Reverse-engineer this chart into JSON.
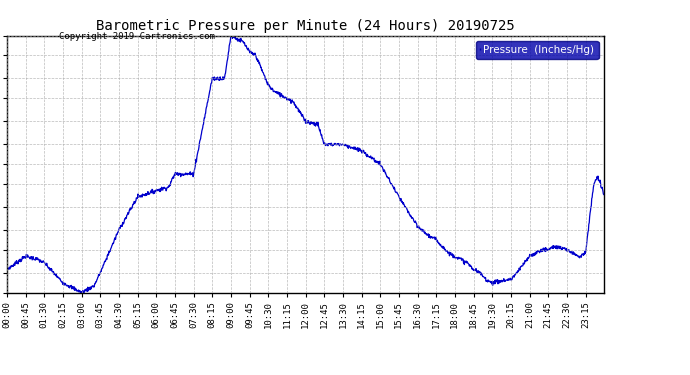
{
  "title": "Barometric Pressure per Minute (24 Hours) 20190725",
  "copyright_text": "Copyright 2019 Cartronics.com",
  "legend_label": "Pressure  (Inches/Hg)",
  "line_color": "#0000cc",
  "background_color": "#ffffff",
  "grid_color": "#aaaaaa",
  "ylim": [
    29.964,
    30.042
  ],
  "yticks": [
    29.964,
    29.97,
    29.977,
    29.983,
    29.99,
    29.997,
    30.003,
    30.009,
    30.016,
    30.023,
    30.029,
    30.036,
    30.042
  ],
  "xtick_labels": [
    "00:00",
    "00:45",
    "01:30",
    "02:15",
    "03:00",
    "03:45",
    "04:30",
    "05:15",
    "06:00",
    "06:45",
    "07:30",
    "08:15",
    "09:00",
    "09:45",
    "10:30",
    "11:15",
    "12:00",
    "12:45",
    "13:30",
    "14:15",
    "15:00",
    "15:45",
    "16:30",
    "17:15",
    "18:00",
    "18:45",
    "19:30",
    "20:15",
    "21:00",
    "21:45",
    "22:30",
    "23:15"
  ],
  "keypoints_time": [
    0,
    45,
    75,
    90,
    135,
    180,
    210,
    225,
    270,
    315,
    360,
    390,
    405,
    450,
    495,
    500,
    510,
    525,
    540,
    570,
    585,
    600,
    630,
    645,
    660,
    675,
    690,
    720,
    750,
    765,
    810,
    855,
    900,
    945,
    990,
    1020,
    1035,
    1050,
    1065,
    1080,
    1095,
    1110,
    1125,
    1140,
    1155,
    1170,
    1215,
    1230,
    1260,
    1290,
    1305,
    1320,
    1350,
    1380,
    1395,
    1415,
    1425,
    1439
  ],
  "keypoints_pressure": [
    29.971,
    29.975,
    29.974,
    29.973,
    29.967,
    29.964,
    29.966,
    29.97,
    29.983,
    29.993,
    29.995,
    29.996,
    30.0,
    30.0,
    30.029,
    30.029,
    30.029,
    30.029,
    30.042,
    30.04,
    30.037,
    30.036,
    30.027,
    30.025,
    30.024,
    30.023,
    30.022,
    30.016,
    30.015,
    30.009,
    30.009,
    30.007,
    30.003,
    29.993,
    29.984,
    29.981,
    29.98,
    29.978,
    29.976,
    29.975,
    29.974,
    29.973,
    29.971,
    29.97,
    29.968,
    29.967,
    29.968,
    29.97,
    29.975,
    29.977,
    29.977,
    29.978,
    29.977,
    29.975,
    29.976,
    29.997,
    29.999,
    29.994
  ]
}
